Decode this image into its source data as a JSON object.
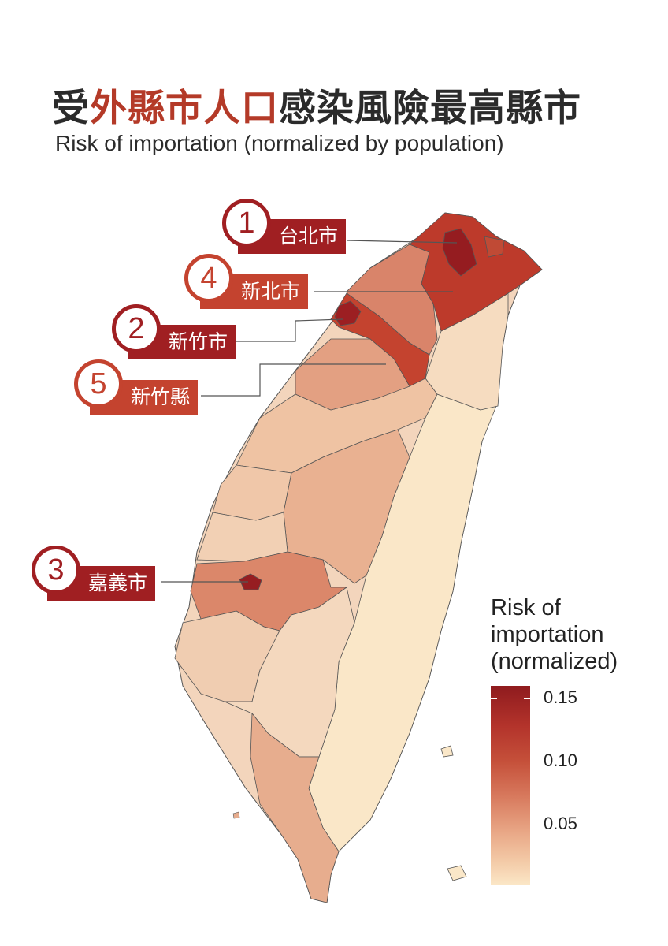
{
  "title": {
    "pre": "受",
    "highlight": "外縣市人口",
    "post": "感染風險最高縣市"
  },
  "subtitle": "Risk of importation (normalized by population)",
  "legend": {
    "title_lines": [
      "Risk of",
      "importation",
      "(normalized)"
    ],
    "ticks": [
      "0.15",
      "0.10",
      "0.05"
    ]
  },
  "rankings": [
    {
      "rank": "1",
      "name": "台北市"
    },
    {
      "rank": "4",
      "name": "新北市"
    },
    {
      "rank": "2",
      "name": "新竹市"
    },
    {
      "rank": "5",
      "name": "新竹縣"
    },
    {
      "rank": "3",
      "name": "嘉義市"
    }
  ],
  "colors": {
    "accent": "#b43a28",
    "dark_red": "#9a1f22",
    "legend_high": "#8f1b1e",
    "legend_low": "#fbe6c6"
  }
}
